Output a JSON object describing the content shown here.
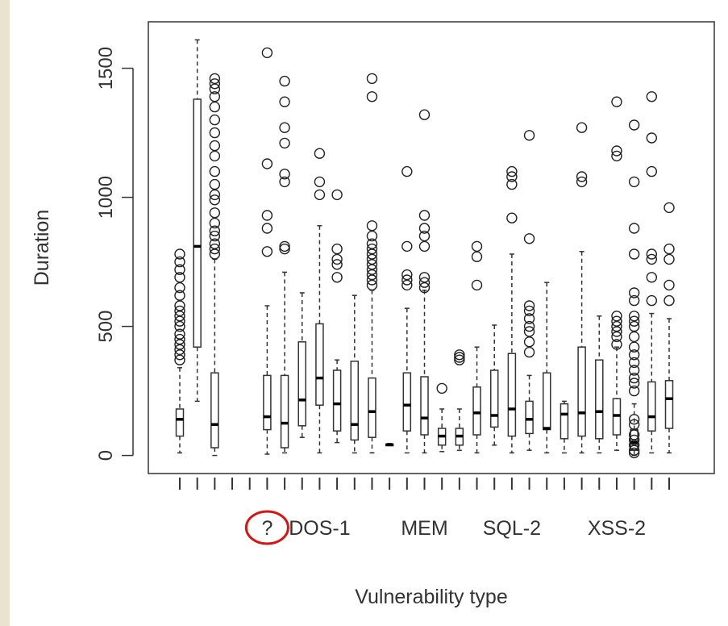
{
  "chart_data": {
    "type": "box",
    "xlabel": "Vulnerability type",
    "ylabel": "Duration",
    "ylim": [
      -70,
      1680
    ],
    "yticks": [
      0,
      500,
      1000,
      1500
    ],
    "grid": false,
    "legend": "none",
    "x_tick_labels_shown": [
      {
        "box_index": 5,
        "label": "?"
      },
      {
        "box_index": 8,
        "label": "DOS-1"
      },
      {
        "box_index": 14,
        "label": "MEM"
      },
      {
        "box_index": 19,
        "label": "SQL-2"
      },
      {
        "box_index": 25,
        "label": "XSS-2"
      }
    ],
    "highlight": {
      "label": "?",
      "shape": "circle",
      "color": "#dd1111"
    },
    "boxes": [
      {
        "index": 0,
        "min": 10,
        "q1": 75,
        "median": 140,
        "q3": 180,
        "max": 340,
        "outliers": [
          370,
          390,
          410,
          430,
          450,
          470,
          500,
          520,
          540,
          560,
          580,
          620,
          650,
          690,
          720,
          750,
          780
        ]
      },
      {
        "index": 1,
        "min": 210,
        "q1": 420,
        "median": 810,
        "q3": 1380,
        "max": 1610,
        "outliers": []
      },
      {
        "index": 2,
        "min": 0,
        "q1": 30,
        "median": 120,
        "q3": 320,
        "max": 760,
        "outliers": [
          780,
          800,
          820,
          850,
          870,
          900,
          940,
          990,
          1010,
          1050,
          1100,
          1160,
          1200,
          1250,
          1300,
          1350,
          1390,
          1420,
          1440,
          1460
        ]
      },
      {
        "index": 3,
        "min": null,
        "q1": null,
        "median": null,
        "q3": null,
        "max": null,
        "outliers": []
      },
      {
        "index": 4,
        "min": null,
        "q1": null,
        "median": null,
        "q3": null,
        "max": null,
        "outliers": []
      },
      {
        "index": 5,
        "min": 5,
        "q1": 100,
        "median": 150,
        "q3": 310,
        "max": 580,
        "outliers": [
          790,
          880,
          930,
          1130,
          1560
        ]
      },
      {
        "index": 6,
        "min": 10,
        "q1": 30,
        "median": 125,
        "q3": 310,
        "max": 710,
        "outliers": [
          800,
          810,
          1060,
          1090,
          1210,
          1270,
          1370,
          1450
        ]
      },
      {
        "index": 7,
        "min": 70,
        "q1": 115,
        "median": 215,
        "q3": 440,
        "max": 630,
        "outliers": []
      },
      {
        "index": 8,
        "min": 10,
        "q1": 195,
        "median": 300,
        "q3": 510,
        "max": 890,
        "outliers": [
          1010,
          1060,
          1170
        ]
      },
      {
        "index": 9,
        "min": 50,
        "q1": 95,
        "median": 200,
        "q3": 330,
        "max": 370,
        "outliers": [
          690,
          740,
          760,
          800,
          1010
        ]
      },
      {
        "index": 10,
        "min": 10,
        "q1": 60,
        "median": 120,
        "q3": 365,
        "max": 620,
        "outliers": []
      },
      {
        "index": 11,
        "min": 10,
        "q1": 70,
        "median": 170,
        "q3": 300,
        "max": 640,
        "outliers": [
          660,
          680,
          700,
          720,
          740,
          760,
          780,
          800,
          820,
          850,
          890,
          1390,
          1460
        ]
      },
      {
        "index": 12,
        "min": 38,
        "q1": 40,
        "median": 42,
        "q3": 44,
        "max": 46,
        "outliers": []
      },
      {
        "index": 13,
        "min": 10,
        "q1": 95,
        "median": 195,
        "q3": 320,
        "max": 570,
        "outliers": [
          660,
          680,
          700,
          810,
          1100
        ]
      },
      {
        "index": 14,
        "min": 10,
        "q1": 80,
        "median": 145,
        "q3": 305,
        "max": 640,
        "outliers": [
          650,
          670,
          690,
          810,
          850,
          880,
          930,
          1320
        ]
      },
      {
        "index": 15,
        "min": 15,
        "q1": 40,
        "median": 75,
        "q3": 105,
        "max": 180,
        "outliers": [
          260
        ]
      },
      {
        "index": 16,
        "min": 20,
        "q1": 40,
        "median": 75,
        "q3": 105,
        "max": 180,
        "outliers": [
          370,
          380,
          390
        ]
      },
      {
        "index": 17,
        "min": 10,
        "q1": 80,
        "median": 165,
        "q3": 265,
        "max": 420,
        "outliers": [
          660,
          770,
          810
        ]
      },
      {
        "index": 18,
        "min": 40,
        "q1": 110,
        "median": 155,
        "q3": 330,
        "max": 505,
        "outliers": []
      },
      {
        "index": 19,
        "min": 10,
        "q1": 75,
        "median": 180,
        "q3": 395,
        "max": 780,
        "outliers": [
          920,
          1050,
          1080,
          1100
        ]
      },
      {
        "index": 20,
        "min": 20,
        "q1": 85,
        "median": 140,
        "q3": 210,
        "max": 310,
        "outliers": [
          400,
          440,
          480,
          500,
          530,
          560,
          580,
          840,
          1240
        ]
      },
      {
        "index": 21,
        "min": 10,
        "q1": 100,
        "median": 105,
        "q3": 320,
        "max": 670,
        "outliers": []
      },
      {
        "index": 22,
        "min": 10,
        "q1": 65,
        "median": 160,
        "q3": 200,
        "max": 210,
        "outliers": []
      },
      {
        "index": 23,
        "min": 10,
        "q1": 75,
        "median": 165,
        "q3": 420,
        "max": 790,
        "outliers": [
          1060,
          1080,
          1270
        ]
      },
      {
        "index": 24,
        "min": 10,
        "q1": 65,
        "median": 170,
        "q3": 370,
        "max": 540,
        "outliers": []
      },
      {
        "index": 25,
        "min": 20,
        "q1": 80,
        "median": 155,
        "q3": 220,
        "max": 420,
        "outliers": [
          430,
          460,
          480,
          500,
          520,
          540,
          1160,
          1180,
          1370
        ]
      },
      {
        "index": 26,
        "min": 0,
        "q1": 20,
        "median": 50,
        "q3": 100,
        "max": 200,
        "outliers": [
          10,
          20,
          40,
          60,
          80,
          120,
          140,
          250,
          280,
          300,
          330,
          360,
          390,
          420,
          460,
          500,
          520,
          540,
          600,
          630,
          780,
          880,
          1060,
          1280
        ]
      },
      {
        "index": 27,
        "min": 10,
        "q1": 95,
        "median": 150,
        "q3": 285,
        "max": 550,
        "outliers": [
          600,
          690,
          760,
          780,
          1100,
          1230,
          1390
        ]
      },
      {
        "index": 28,
        "min": 10,
        "q1": 105,
        "median": 220,
        "q3": 290,
        "max": 530,
        "outliers": [
          600,
          660,
          760,
          800,
          960
        ]
      }
    ],
    "colors": {
      "box": "#333333",
      "median": "#000000",
      "axis": "#333333",
      "highlight": "#dd1111"
    }
  }
}
